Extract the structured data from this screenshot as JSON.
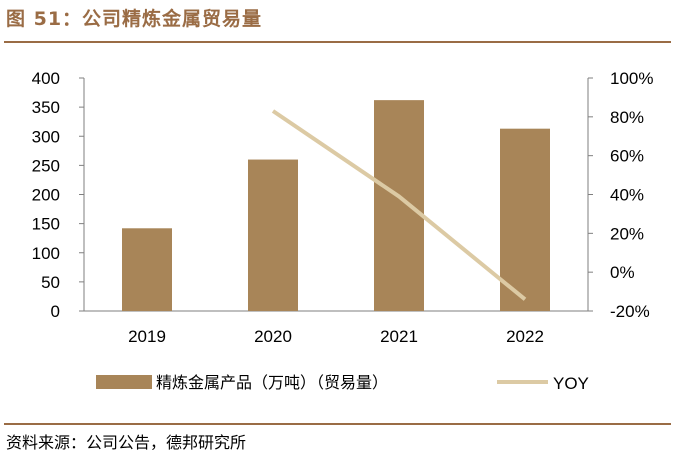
{
  "figure": {
    "title": "图 51：公司精炼金属贸易量",
    "source": "资料来源：公司公告，德邦研究所"
  },
  "chart_data": {
    "type": "bar",
    "categories": [
      "2019",
      "2020",
      "2021",
      "2022"
    ],
    "series": [
      {
        "name": "精炼金属产品（万吨）（贸易量）",
        "type": "bar",
        "axis": "left",
        "color": "#a88558",
        "values": [
          142,
          260,
          362,
          313
        ]
      },
      {
        "name": "YOY",
        "type": "line",
        "axis": "right",
        "color": "#dccaa4",
        "values": [
          null,
          83,
          39,
          -14
        ]
      }
    ],
    "y_left": {
      "ylim": [
        0,
        400
      ],
      "ticks": [
        "0",
        "50",
        "100",
        "150",
        "200",
        "250",
        "300",
        "350",
        "400"
      ]
    },
    "y_right": {
      "ylim": [
        -20,
        100
      ],
      "ticks": [
        "-20%",
        "0%",
        "20%",
        "40%",
        "60%",
        "80%",
        "100%"
      ]
    },
    "legend_position": "bottom",
    "grid": false
  }
}
